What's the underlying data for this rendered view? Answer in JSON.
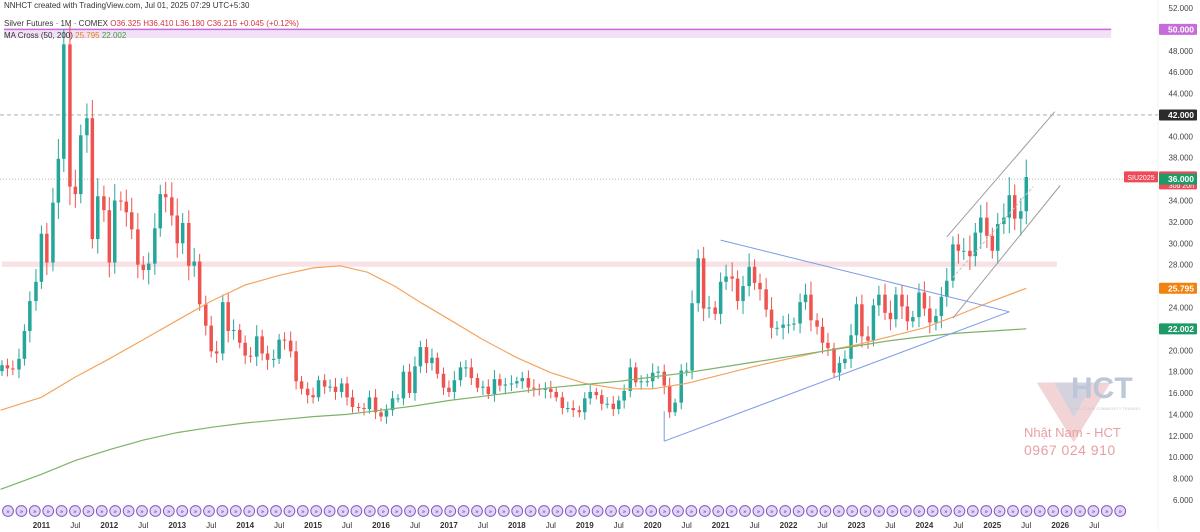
{
  "header": {
    "line1": "NNHCT created with TradingView.com, Jul 01, 2025 07:29 UTC+5:30",
    "symbol": "Silver Futures · 1M · COMEX",
    "o": "O36.325",
    "h": "H36.410",
    "l": "L36.180",
    "c": "C36.215",
    "chg": "+0.045 (+0.12%)",
    "ma_label": "MA Cross (50, 200)",
    "ma50": "25.795",
    "ma200": "22.002"
  },
  "watermark": {
    "brand": "HCT",
    "tagline": "HIGH-CLASS COMMODITY TRADING",
    "name": "Nhật Nam - HCT",
    "phone": "0967 024 910"
  },
  "colors": {
    "up": "#26a69a",
    "down": "#ef5350",
    "ma50": "#f4a460",
    "ma200": "#7cb36a",
    "trend": "#7b9be8",
    "channel": "#b4b4b4",
    "zone_purple": "#c56cd8",
    "zone_pink": "#f8dfe2",
    "tag_red": "#ef4a59",
    "tag_green": "#1e9a66",
    "tag_orange": "#f0820f"
  },
  "chart_data": {
    "type": "candlestick",
    "title": "Silver Futures · 1M · COMEX",
    "y_range": [
      6,
      52
    ],
    "y_ticks": [
      "6.000",
      "8.000",
      "10.000",
      "12.000",
      "14.000",
      "16.000",
      "18.000",
      "20.000",
      "22.000",
      "24.000",
      "26.000",
      "28.000",
      "30.000",
      "32.000",
      "34.000",
      "36.000",
      "38.000",
      "40.000",
      "42.000",
      "44.000",
      "46.000",
      "48.000",
      "50.000",
      "52.000"
    ],
    "x_labels": [
      {
        "label": "2011",
        "t": 2011.0
      },
      {
        "label": "Jul",
        "t": 2011.5
      },
      {
        "label": "2012",
        "t": 2012.0
      },
      {
        "label": "Jul",
        "t": 2012.5
      },
      {
        "label": "2013",
        "t": 2013.0
      },
      {
        "label": "Jul",
        "t": 2013.5
      },
      {
        "label": "2014",
        "t": 2014.0
      },
      {
        "label": "Jul",
        "t": 2014.5
      },
      {
        "label": "2015",
        "t": 2015.0
      },
      {
        "label": "Jul",
        "t": 2015.5
      },
      {
        "label": "2016",
        "t": 2016.0
      },
      {
        "label": "Jul",
        "t": 2016.5
      },
      {
        "label": "2017",
        "t": 2017.0
      },
      {
        "label": "Jul",
        "t": 2017.5
      },
      {
        "label": "2018",
        "t": 2018.0
      },
      {
        "label": "Jul",
        "t": 2018.5
      },
      {
        "label": "2019",
        "t": 2019.0
      },
      {
        "label": "Jul",
        "t": 2019.5
      },
      {
        "label": "2020",
        "t": 2020.0
      },
      {
        "label": "Jul",
        "t": 2020.5
      },
      {
        "label": "2021",
        "t": 2021.0
      },
      {
        "label": "Jul",
        "t": 2021.5
      },
      {
        "label": "2022",
        "t": 2022.0
      },
      {
        "label": "Jul",
        "t": 2022.5
      },
      {
        "label": "2023",
        "t": 2023.0
      },
      {
        "label": "Jul",
        "t": 2023.5
      },
      {
        "label": "2024",
        "t": 2024.0
      },
      {
        "label": "Jul",
        "t": 2024.5
      },
      {
        "label": "2025",
        "t": 2025.0
      },
      {
        "label": "Jul",
        "t": 2025.5
      },
      {
        "label": "2026",
        "t": 2026.0
      },
      {
        "label": "Jul",
        "t": 2026.5
      }
    ],
    "closes": [
      [
        2010.42,
        18.6
      ],
      [
        2010.5,
        18.3
      ],
      [
        2010.58,
        18.2
      ],
      [
        2010.67,
        19.2
      ],
      [
        2010.75,
        21.8
      ],
      [
        2010.83,
        24.6
      ],
      [
        2010.92,
        26.4
      ],
      [
        2011.0,
        30.9
      ],
      [
        2011.08,
        28.2
      ],
      [
        2011.17,
        33.8
      ],
      [
        2011.25,
        37.9
      ],
      [
        2011.33,
        48.6
      ],
      [
        2011.42,
        35.3
      ],
      [
        2011.5,
        34.6
      ],
      [
        2011.58,
        40.1
      ],
      [
        2011.67,
        41.7
      ],
      [
        2011.75,
        30.4
      ],
      [
        2011.83,
        34.4
      ],
      [
        2011.92,
        33.1
      ],
      [
        2012.0,
        28.2
      ],
      [
        2012.08,
        34.0
      ],
      [
        2012.17,
        33.9
      ],
      [
        2012.25,
        32.9
      ],
      [
        2012.33,
        31.3
      ],
      [
        2012.42,
        28.0
      ],
      [
        2012.5,
        27.5
      ],
      [
        2012.58,
        28.1
      ],
      [
        2012.67,
        31.4
      ],
      [
        2012.75,
        34.6
      ],
      [
        2012.83,
        34.3
      ],
      [
        2012.92,
        32.6
      ],
      [
        2013.0,
        30.0
      ],
      [
        2013.08,
        31.9
      ],
      [
        2013.17,
        27.9
      ],
      [
        2013.25,
        28.3
      ],
      [
        2013.33,
        24.3
      ],
      [
        2013.42,
        22.3
      ],
      [
        2013.5,
        19.9
      ],
      [
        2013.58,
        19.7
      ],
      [
        2013.67,
        24.5
      ],
      [
        2013.75,
        21.8
      ],
      [
        2013.83,
        21.9
      ],
      [
        2013.92,
        20.7
      ],
      [
        2014.0,
        19.5
      ],
      [
        2014.08,
        19.4
      ],
      [
        2014.17,
        21.3
      ],
      [
        2014.25,
        19.7
      ],
      [
        2014.33,
        19.1
      ],
      [
        2014.42,
        19.2
      ],
      [
        2014.5,
        21.0
      ],
      [
        2014.58,
        20.9
      ],
      [
        2014.67,
        19.9
      ],
      [
        2014.75,
        17.1
      ],
      [
        2014.83,
        16.4
      ],
      [
        2014.92,
        15.8
      ],
      [
        2015.0,
        15.6
      ],
      [
        2015.08,
        17.2
      ],
      [
        2015.17,
        16.6
      ],
      [
        2015.25,
        16.6
      ],
      [
        2015.33,
        16.1
      ],
      [
        2015.42,
        16.9
      ],
      [
        2015.5,
        15.6
      ],
      [
        2015.58,
        14.7
      ],
      [
        2015.67,
        14.6
      ],
      [
        2015.75,
        14.5
      ],
      [
        2015.83,
        15.6
      ],
      [
        2015.92,
        14.2
      ],
      [
        2016.0,
        13.8
      ],
      [
        2016.08,
        14.4
      ],
      [
        2016.17,
        15.5
      ],
      [
        2016.25,
        15.5
      ],
      [
        2016.33,
        18.0
      ],
      [
        2016.42,
        16.0
      ],
      [
        2016.5,
        18.5
      ],
      [
        2016.58,
        20.3
      ],
      [
        2016.67,
        18.8
      ],
      [
        2016.75,
        19.3
      ],
      [
        2016.83,
        17.8
      ],
      [
        2016.92,
        16.5
      ],
      [
        2017.0,
        16.1
      ],
      [
        2017.08,
        17.2
      ],
      [
        2017.17,
        18.4
      ],
      [
        2017.25,
        18.4
      ],
      [
        2017.33,
        17.4
      ],
      [
        2017.42,
        16.5
      ],
      [
        2017.5,
        16.6
      ],
      [
        2017.58,
        15.9
      ],
      [
        2017.67,
        17.3
      ],
      [
        2017.75,
        16.7
      ],
      [
        2017.83,
        16.8
      ],
      [
        2017.92,
        16.9
      ],
      [
        2018.0,
        17.1
      ],
      [
        2018.08,
        17.4
      ],
      [
        2018.17,
        16.5
      ],
      [
        2018.25,
        16.4
      ],
      [
        2018.33,
        16.3
      ],
      [
        2018.42,
        16.4
      ],
      [
        2018.5,
        16.1
      ],
      [
        2018.58,
        15.6
      ],
      [
        2018.67,
        14.6
      ],
      [
        2018.75,
        14.6
      ],
      [
        2018.83,
        14.4
      ],
      [
        2018.92,
        14.2
      ],
      [
        2019.0,
        15.5
      ],
      [
        2019.08,
        16.1
      ],
      [
        2019.17,
        15.8
      ],
      [
        2019.25,
        15.0
      ],
      [
        2019.33,
        15.0
      ],
      [
        2019.42,
        14.5
      ],
      [
        2019.5,
        15.3
      ],
      [
        2019.58,
        16.2
      ],
      [
        2019.67,
        18.4
      ],
      [
        2019.75,
        17.0
      ],
      [
        2019.83,
        17.1
      ],
      [
        2019.92,
        17.1
      ],
      [
        2020.0,
        17.9
      ],
      [
        2020.08,
        18.0
      ],
      [
        2020.17,
        16.7
      ],
      [
        2020.25,
        14.2
      ],
      [
        2020.33,
        15.1
      ],
      [
        2020.42,
        18.1
      ],
      [
        2020.5,
        18.1
      ],
      [
        2020.58,
        24.4
      ],
      [
        2020.67,
        28.6
      ],
      [
        2020.75,
        23.9
      ],
      [
        2020.83,
        24.0
      ],
      [
        2020.92,
        23.4
      ],
      [
        2021.0,
        26.4
      ],
      [
        2021.08,
        26.9
      ],
      [
        2021.17,
        26.7
      ],
      [
        2021.25,
        24.6
      ],
      [
        2021.33,
        26.0
      ],
      [
        2021.42,
        27.8
      ],
      [
        2021.5,
        26.3
      ],
      [
        2021.58,
        25.7
      ],
      [
        2021.67,
        23.8
      ],
      [
        2021.75,
        22.1
      ],
      [
        2021.83,
        22.1
      ],
      [
        2021.92,
        22.4
      ],
      [
        2022.0,
        22.4
      ],
      [
        2022.08,
        22.5
      ],
      [
        2022.17,
        24.5
      ],
      [
        2022.25,
        25.2
      ],
      [
        2022.33,
        22.8
      ],
      [
        2022.42,
        22.2
      ],
      [
        2022.5,
        20.7
      ],
      [
        2022.58,
        20.2
      ],
      [
        2022.67,
        17.9
      ],
      [
        2022.75,
        18.8
      ],
      [
        2022.83,
        19.2
      ],
      [
        2022.92,
        21.4
      ],
      [
        2023.0,
        24.3
      ],
      [
        2023.08,
        21.3
      ],
      [
        2023.17,
        20.9
      ],
      [
        2023.25,
        24.2
      ],
      [
        2023.33,
        25.2
      ],
      [
        2023.42,
        23.5
      ],
      [
        2023.5,
        22.9
      ],
      [
        2023.58,
        25.2
      ],
      [
        2023.67,
        24.1
      ],
      [
        2023.75,
        22.7
      ],
      [
        2023.83,
        23.1
      ],
      [
        2023.92,
        25.4
      ],
      [
        2024.0,
        23.9
      ],
      [
        2024.08,
        22.6
      ],
      [
        2024.17,
        23.2
      ],
      [
        2024.25,
        25.0
      ],
      [
        2024.33,
        26.5
      ],
      [
        2024.42,
        29.9
      ],
      [
        2024.5,
        29.3
      ],
      [
        2024.58,
        29.3
      ],
      [
        2024.67,
        28.8
      ],
      [
        2024.75,
        31.0
      ],
      [
        2024.83,
        32.4
      ],
      [
        2024.92,
        30.7
      ],
      [
        2025.0,
        29.3
      ],
      [
        2025.08,
        31.8
      ],
      [
        2025.17,
        32.4
      ],
      [
        2025.25,
        34.5
      ],
      [
        2025.33,
        32.3
      ],
      [
        2025.42,
        33.0
      ],
      [
        2025.5,
        36.2
      ]
    ],
    "ma50": [
      [
        2010.4,
        14.4
      ],
      [
        2011.0,
        15.6
      ],
      [
        2011.5,
        17.5
      ],
      [
        2012.0,
        19.2
      ],
      [
        2012.5,
        21.0
      ],
      [
        2013.0,
        22.8
      ],
      [
        2013.5,
        24.6
      ],
      [
        2014.0,
        26.1
      ],
      [
        2014.5,
        27.0
      ],
      [
        2015.0,
        27.7
      ],
      [
        2015.4,
        27.9
      ],
      [
        2015.8,
        27.3
      ],
      [
        2016.2,
        26.0
      ],
      [
        2016.6,
        24.4
      ],
      [
        2017.0,
        22.9
      ],
      [
        2017.5,
        21.0
      ],
      [
        2018.0,
        19.3
      ],
      [
        2018.5,
        17.9
      ],
      [
        2019.0,
        16.9
      ],
      [
        2019.5,
        16.4
      ],
      [
        2020.0,
        16.4
      ],
      [
        2020.5,
        16.9
      ],
      [
        2021.0,
        17.7
      ],
      [
        2021.5,
        18.5
      ],
      [
        2022.0,
        19.2
      ],
      [
        2022.5,
        19.9
      ],
      [
        2023.0,
        20.5
      ],
      [
        2023.5,
        21.3
      ],
      [
        2024.0,
        22.1
      ],
      [
        2024.5,
        23.3
      ],
      [
        2025.0,
        24.6
      ],
      [
        2025.5,
        25.795
      ]
    ],
    "ma200": [
      [
        2010.4,
        7.0
      ],
      [
        2011.0,
        8.4
      ],
      [
        2011.5,
        9.7
      ],
      [
        2012.0,
        10.7
      ],
      [
        2012.5,
        11.6
      ],
      [
        2013.0,
        12.3
      ],
      [
        2013.5,
        12.8
      ],
      [
        2014.0,
        13.2
      ],
      [
        2014.5,
        13.5
      ],
      [
        2015.0,
        13.8
      ],
      [
        2015.5,
        14.0
      ],
      [
        2016.0,
        14.4
      ],
      [
        2016.5,
        14.8
      ],
      [
        2017.0,
        15.3
      ],
      [
        2017.5,
        15.7
      ],
      [
        2018.0,
        16.1
      ],
      [
        2018.5,
        16.5
      ],
      [
        2019.0,
        16.8
      ],
      [
        2019.5,
        17.1
      ],
      [
        2020.0,
        17.5
      ],
      [
        2020.5,
        17.9
      ],
      [
        2021.0,
        18.4
      ],
      [
        2021.5,
        18.9
      ],
      [
        2022.0,
        19.4
      ],
      [
        2022.5,
        19.9
      ],
      [
        2023.0,
        20.4
      ],
      [
        2023.5,
        20.9
      ],
      [
        2024.0,
        21.3
      ],
      [
        2024.5,
        21.6
      ],
      [
        2025.0,
        21.8
      ],
      [
        2025.5,
        22.002
      ]
    ],
    "trend_lines": [
      {
        "kind": "triangle",
        "points": [
          [
            2020.17,
            11.5
          ],
          [
            2025.25,
            23.6
          ],
          [
            2021.0,
            30.3
          ],
          [
            2024.25,
            25.0
          ]
        ]
      }
    ],
    "channel": {
      "upper": [
        [
          2024.33,
          30.6
        ],
        [
          2025.92,
          42.3
        ]
      ],
      "lower": [
        [
          2024.42,
          23.0
        ],
        [
          2026.0,
          35.4
        ]
      ],
      "mid_dashed": [
        [
          2024.42,
          26.8
        ],
        [
          2025.6,
          35.3
        ]
      ]
    },
    "zones": [
      {
        "name": "resistance-50",
        "from": 49.2,
        "to": 50.0,
        "t0": 2010.45,
        "t1": 2026.75,
        "color": "zone_purple"
      },
      {
        "name": "support-28",
        "from": 27.8,
        "to": 28.3,
        "t0": 2010.42,
        "t1": 2025.95,
        "color": "zone_pink"
      }
    ],
    "h_lines": [
      {
        "value": 42.0,
        "style": "dashed"
      },
      {
        "value": 36.0,
        "style": "dotted"
      }
    ],
    "price_tags": [
      {
        "value": 50.0,
        "text": "50.000",
        "color": "zone_purple"
      },
      {
        "value": 42.0,
        "text": "42.000",
        "color": "tag_dark"
      },
      {
        "value": 36.215,
        "text": "36.215",
        "sub": "30d 20h",
        "color": "tag_red",
        "symbol": "SIU2025"
      },
      {
        "value": 36.0,
        "text": "36.000",
        "color": "tag_green"
      },
      {
        "value": 25.795,
        "text": "25.795",
        "color": "tag_orange"
      },
      {
        "value": 22.002,
        "text": "22.002",
        "color": "tag_green"
      }
    ]
  }
}
